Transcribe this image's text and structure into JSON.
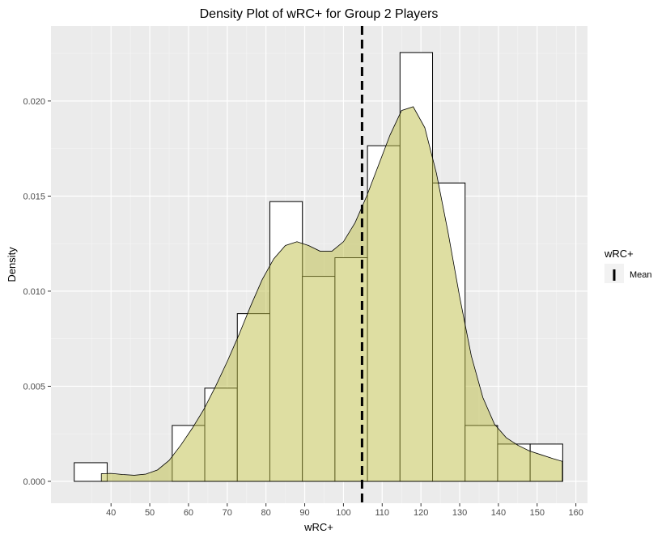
{
  "chart_data": {
    "type": "histogram-density",
    "title": "Density Plot of wRC+ for Group 2 Players",
    "xlabel": "wRC+",
    "ylabel": "Density",
    "xlim": [
      24.5,
      163
    ],
    "ylim": [
      -0.00115,
      0.02395
    ],
    "x_ticks": [
      40,
      50,
      60,
      70,
      80,
      90,
      100,
      110,
      120,
      130,
      140,
      150,
      160
    ],
    "y_ticks": [
      0.0,
      0.005,
      0.01,
      0.015,
      0.02
    ],
    "y_tick_labels": [
      "0.000",
      "0.005",
      "0.010",
      "0.015",
      "0.020"
    ],
    "histogram_bins": [
      {
        "x0": 30.5,
        "x1": 39.0,
        "density": 0.00098
      },
      {
        "x0": 39.0,
        "x1": 47.4,
        "density": 0.0
      },
      {
        "x0": 47.4,
        "x1": 55.8,
        "density": 0.0
      },
      {
        "x0": 55.8,
        "x1": 64.2,
        "density": 0.00294
      },
      {
        "x0": 64.2,
        "x1": 72.6,
        "density": 0.0049
      },
      {
        "x0": 72.6,
        "x1": 81.0,
        "density": 0.00882
      },
      {
        "x0": 81.0,
        "x1": 89.4,
        "density": 0.01471
      },
      {
        "x0": 89.4,
        "x1": 97.8,
        "density": 0.01078
      },
      {
        "x0": 97.8,
        "x1": 106.2,
        "density": 0.01176
      },
      {
        "x0": 106.2,
        "x1": 114.6,
        "density": 0.01765
      },
      {
        "x0": 114.6,
        "x1": 123.0,
        "density": 0.02255
      },
      {
        "x0": 123.0,
        "x1": 131.4,
        "density": 0.01569
      },
      {
        "x0": 131.4,
        "x1": 139.8,
        "density": 0.00294
      },
      {
        "x0": 139.8,
        "x1": 148.2,
        "density": 0.00196
      },
      {
        "x0": 148.2,
        "x1": 156.6,
        "density": 0.00196
      }
    ],
    "density_curve": {
      "x": [
        37.5,
        40,
        43,
        46,
        49,
        52,
        55,
        58,
        61,
        64,
        67,
        70,
        73,
        76,
        79,
        82,
        85,
        88,
        91,
        94,
        97,
        100,
        103,
        106,
        109,
        112,
        115,
        118,
        121,
        124,
        127,
        130,
        133,
        136,
        139,
        142,
        145,
        148,
        151,
        154,
        156.5
      ],
      "y": [
        0.0004,
        0.00042,
        0.00036,
        0.00032,
        0.00038,
        0.0006,
        0.0011,
        0.0019,
        0.0028,
        0.0038,
        0.005,
        0.0063,
        0.0077,
        0.0092,
        0.0106,
        0.0117,
        0.0124,
        0.0126,
        0.0124,
        0.0121,
        0.0121,
        0.0126,
        0.0136,
        0.015,
        0.0166,
        0.0182,
        0.0195,
        0.0197,
        0.0186,
        0.0162,
        0.0131,
        0.0097,
        0.0066,
        0.0044,
        0.003,
        0.0023,
        0.0019,
        0.0016,
        0.0014,
        0.0012,
        0.00105
      ]
    },
    "mean_line": {
      "x": 104.8,
      "label": "Mean"
    },
    "grid": true,
    "legend": {
      "title": "wRC+",
      "placement": "right",
      "items": [
        {
          "label": "Mean"
        }
      ]
    },
    "colors": {
      "panel_background": "#ebebeb",
      "grid_major": "#ffffff",
      "grid_minor": "#f5f5f5",
      "bar_fill": "#ffffff",
      "bar_stroke": "#000000",
      "density_fill": "#bdbd45",
      "density_fill_opacity": 0.5,
      "density_stroke": "#000000",
      "mean_line": "#000000"
    }
  }
}
